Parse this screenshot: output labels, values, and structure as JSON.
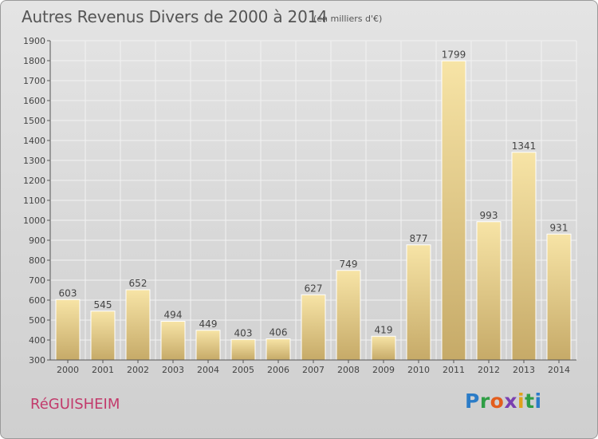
{
  "header": {
    "title": "Autres Revenus Divers de 2000 à 2014",
    "subtitle": "(en milliers d'€)"
  },
  "footer": {
    "city": "RéGUISHEIM",
    "logo": [
      "P",
      "r",
      "o",
      "x",
      "i",
      "t",
      "i"
    ]
  },
  "colors": {
    "bar_light": "#f6e2a3",
    "bar_dark": "#c9ad6a",
    "grid": "#f2f2f2",
    "text": "#444444",
    "city": "#c23a6b"
  },
  "chart_data": {
    "type": "bar",
    "categories": [
      "2000",
      "2001",
      "2002",
      "2003",
      "2004",
      "2005",
      "2006",
      "2007",
      "2008",
      "2009",
      "2010",
      "2011",
      "2012",
      "2013",
      "2014"
    ],
    "values": [
      603,
      545,
      652,
      494,
      449,
      403,
      406,
      627,
      749,
      419,
      877,
      1799,
      993,
      1341,
      931
    ],
    "ylim": [
      300,
      1900
    ],
    "yticks": [
      300,
      400,
      500,
      600,
      700,
      800,
      900,
      1000,
      1100,
      1200,
      1300,
      1400,
      1500,
      1600,
      1700,
      1800,
      1900
    ],
    "grid": true
  }
}
